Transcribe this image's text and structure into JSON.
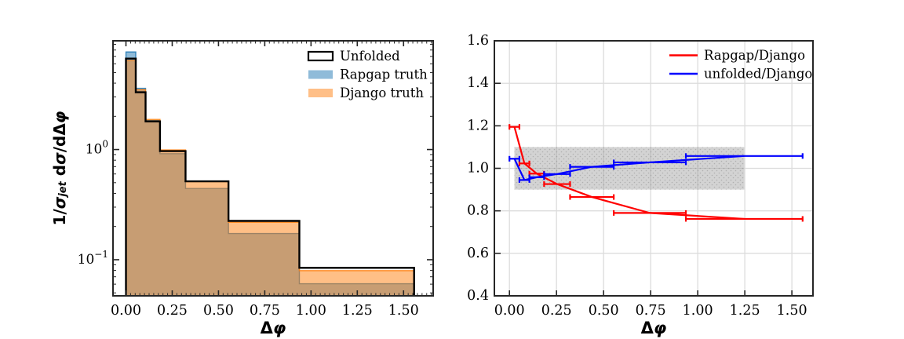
{
  "figure": {
    "background": "#ffffff"
  },
  "chart_data": [
    {
      "type": "bar",
      "subtype": "step-histogram",
      "panel": "left",
      "xlabel": "Δφ",
      "ylabel": "1/σjet dσ/dΔφ",
      "yscale": "log",
      "xlim": [
        -0.07,
        1.66
      ],
      "ylim": [
        0.047,
        9.7
      ],
      "xtick_values": [
        0,
        0.25,
        0.5,
        0.75,
        1.0,
        1.25,
        1.5
      ],
      "xtick_labels": [
        "0.00",
        "0.25",
        "0.50",
        "0.75",
        "1.00",
        "1.25",
        "1.50"
      ],
      "ytick_major": [
        {
          "value": 1,
          "base": "10",
          "exp": "0"
        },
        {
          "value": 0.1,
          "base": "10",
          "exp": "−1"
        }
      ],
      "bin_edges": [
        0.0,
        0.053,
        0.106,
        0.184,
        0.322,
        0.554,
        0.937,
        1.557
      ],
      "series": [
        {
          "name": "Rapgap truth",
          "style": "filled",
          "color": "#1f77b4",
          "fill_alpha": 0.5,
          "values": [
            7.68,
            3.59,
            1.83,
            0.917,
            0.443,
            0.173,
            0.0605
          ]
        },
        {
          "name": "Django truth",
          "style": "filled",
          "color": "#ff7f0e",
          "fill_alpha": 0.5,
          "values": [
            6.4,
            3.5,
            1.875,
            0.992,
            0.512,
            0.2185,
            0.0796
          ]
        },
        {
          "name": "Unfolded",
          "style": "step",
          "color": "#000000",
          "values": [
            6.69,
            3.31,
            1.8,
            0.967,
            0.515,
            0.225,
            0.0844
          ]
        }
      ],
      "legend": {
        "position": "upper right",
        "entries": [
          {
            "label": "Unfolded",
            "swatch": "outline",
            "color": "#000000"
          },
          {
            "label": "Rapgap truth",
            "swatch": "fill",
            "color": "#8fbbd9"
          },
          {
            "label": "Django truth",
            "swatch": "fill",
            "color": "#ffbf87"
          }
        ]
      }
    },
    {
      "type": "line",
      "subtype": "errorbar-ratio",
      "panel": "right",
      "xlabel": "Δφ",
      "xlim": [
        -0.08,
        1.612
      ],
      "ylim": [
        0.4,
        1.6
      ],
      "grid": true,
      "xtick_values": [
        0,
        0.25,
        0.5,
        0.75,
        1.0,
        1.25,
        1.5
      ],
      "xtick_labels": [
        "0.00",
        "0.25",
        "0.50",
        "0.75",
        "1.00",
        "1.25",
        "1.50"
      ],
      "ytick_values": [
        0.4,
        0.6,
        0.8,
        1.0,
        1.2,
        1.4,
        1.6
      ],
      "ytick_labels": [
        "0.4",
        "0.6",
        "0.8",
        "1.0",
        "1.2",
        "1.4",
        "1.6"
      ],
      "bin_edges": [
        0.0,
        0.053,
        0.106,
        0.184,
        0.322,
        0.554,
        0.937,
        1.557
      ],
      "x": [
        0.0265,
        0.0795,
        0.145,
        0.253,
        0.438,
        0.7455,
        1.247
      ],
      "band": {
        "x0": 0.0265,
        "x1": 1.247,
        "y0": 0.9,
        "y1": 1.1,
        "color": "#969696",
        "alpha": 0.42
      },
      "series": [
        {
          "name": "Rapgap/Django",
          "color": "#ff0000",
          "values": [
            1.195,
            1.023,
            0.975,
            0.926,
            0.865,
            0.79,
            0.762
          ]
        },
        {
          "name": "unfolded/Django",
          "color": "#0000ff",
          "values": [
            1.045,
            0.945,
            0.958,
            0.973,
            1.007,
            1.028,
            1.058
          ]
        }
      ],
      "legend": {
        "position": "upper right",
        "entries": [
          {
            "label": "Rapgap/Django",
            "swatch": "line",
            "color": "#ff0000"
          },
          {
            "label": "unfolded/Django",
            "swatch": "line",
            "color": "#0000ff"
          }
        ]
      }
    }
  ],
  "style_colors": {
    "spine": "#262626",
    "grid": "#dcdcdc",
    "tick_label": "#000000"
  }
}
